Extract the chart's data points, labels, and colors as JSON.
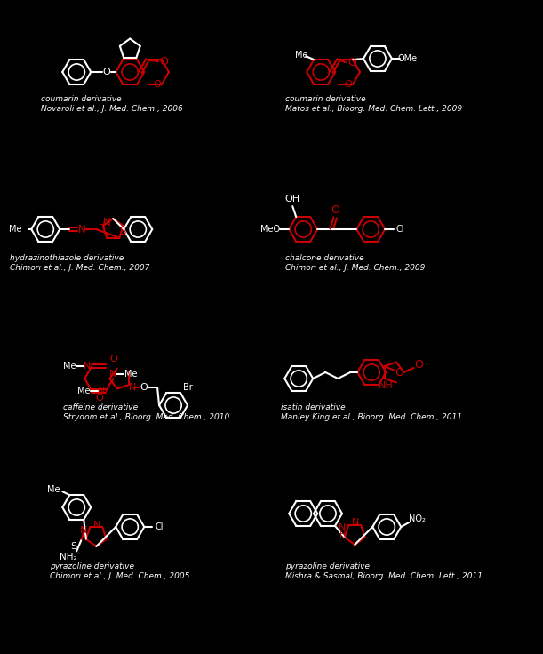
{
  "bg": "#000000",
  "W": "#FFFFFF",
  "R": "#CC0000",
  "lw": 1.5,
  "r6": 16,
  "r5": 12,
  "compounds": [
    {
      "name": "coumarin derivative",
      "ref": "Novaroli et al., J. Med. Chem., 2006"
    },
    {
      "name": "coumarin derivative",
      "ref": "Matos et al., Bioorg. Med. Chem. Lett., 2009"
    },
    {
      "name": "hydrazinothiazole derivative",
      "ref": "Chimorı et al., J. Med. Chem., 2007"
    },
    {
      "name": "chalcone derivative",
      "ref": "Chimorı et al., J. Med. Chem., 2009"
    },
    {
      "name": "caffeine derivative",
      "ref": "Strydom et al., Bioorg. Med. Chem., 2010"
    },
    {
      "name": "isatin derivative",
      "ref": "Manley King et al., Bioorg. Med. Chem., 2011"
    },
    {
      "name": "pyrazoline derivative",
      "ref": "Chimorı et al., J. Med. Chem., 2005"
    },
    {
      "name": "pyrazoline derivative",
      "ref": "Mishra & Sasmal, Bioorg. Med. Chem. Lett., 2011"
    }
  ]
}
